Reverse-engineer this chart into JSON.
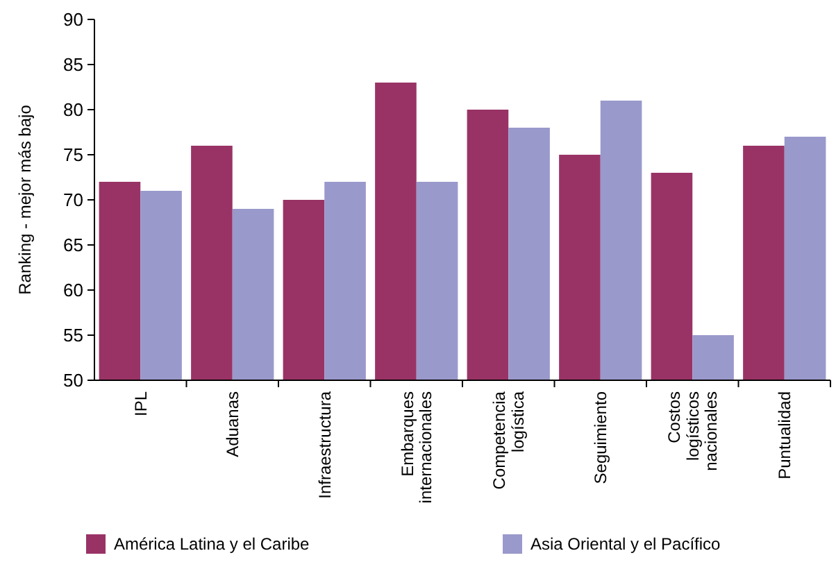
{
  "chart_data": {
    "type": "bar",
    "ylabel": "Ranking - mejor más bajo",
    "categories": [
      "IPL",
      "Aduanas",
      "Infraestructura",
      "Embarques internacionales",
      "Competencia logística",
      "Seguimiento",
      "Costos logísticos nacionales",
      "Puntualidad"
    ],
    "series": [
      {
        "name": "América Latina y el Caribe",
        "color": "#993366",
        "values": [
          72,
          76,
          70,
          83,
          80,
          75,
          73,
          76
        ]
      },
      {
        "name": "Asia Oriental y el Pacífico",
        "color": "#9999cc",
        "values": [
          71,
          69,
          72,
          72,
          78,
          81,
          55,
          77
        ]
      }
    ],
    "ylim": [
      50,
      90
    ],
    "yticks": [
      50,
      55,
      60,
      65,
      70,
      75,
      80,
      85,
      90
    ],
    "legend": "bottom"
  }
}
